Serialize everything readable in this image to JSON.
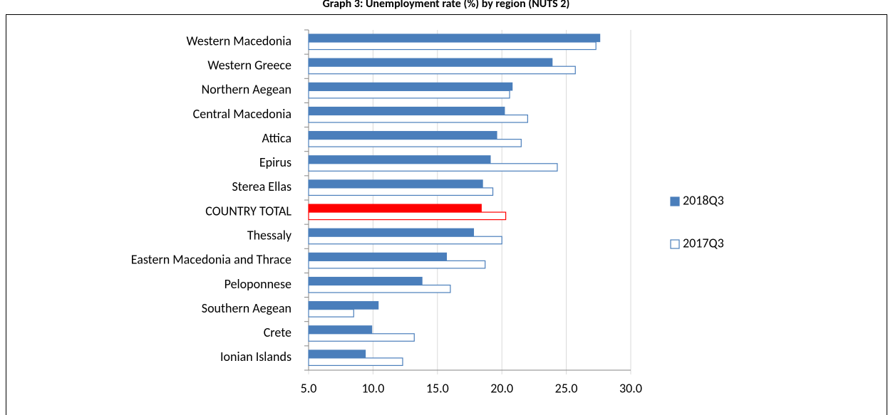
{
  "chart_data": {
    "type": "bar",
    "orientation": "horizontal",
    "title": "Graph 3: Unemployment rate (%) by region (NUTS 2)",
    "categories": [
      "Western Macedonia",
      "Western Greece",
      "Northern Aegean",
      "Central Macedonia",
      "Attica",
      "Epirus",
      "Sterea Ellas",
      "COUNTRY TOTAL",
      "Thessaly",
      "Eastern Macedonia and Thrace",
      "Peloponnese",
      "Southern Aegean",
      "Crete",
      "Ionian Islands"
    ],
    "series": [
      {
        "name": "2018Q3",
        "color": "#4a7ebb",
        "fill": true,
        "values": [
          27.6,
          23.9,
          20.8,
          20.2,
          19.6,
          19.1,
          18.5,
          18.4,
          17.8,
          15.7,
          13.8,
          10.4,
          9.9,
          9.4
        ]
      },
      {
        "name": "2017Q3",
        "color": "#4a7ebb",
        "fill": false,
        "values": [
          27.3,
          25.7,
          20.6,
          22.0,
          21.5,
          24.3,
          19.3,
          20.3,
          20.0,
          18.7,
          16.0,
          8.5,
          13.2,
          12.3
        ]
      }
    ],
    "highlight": {
      "index": 7,
      "color": "#ff0000"
    },
    "xlim": [
      5,
      30
    ],
    "xticks": [
      {
        "value": 5,
        "label": "5.0"
      },
      {
        "value": 10,
        "label": "10.0"
      },
      {
        "value": 15,
        "label": "15.0"
      },
      {
        "value": 20,
        "label": "20.0"
      },
      {
        "value": 25,
        "label": "25.0"
      },
      {
        "value": 30,
        "label": "30.0"
      }
    ],
    "grid": true,
    "legend": "right"
  }
}
